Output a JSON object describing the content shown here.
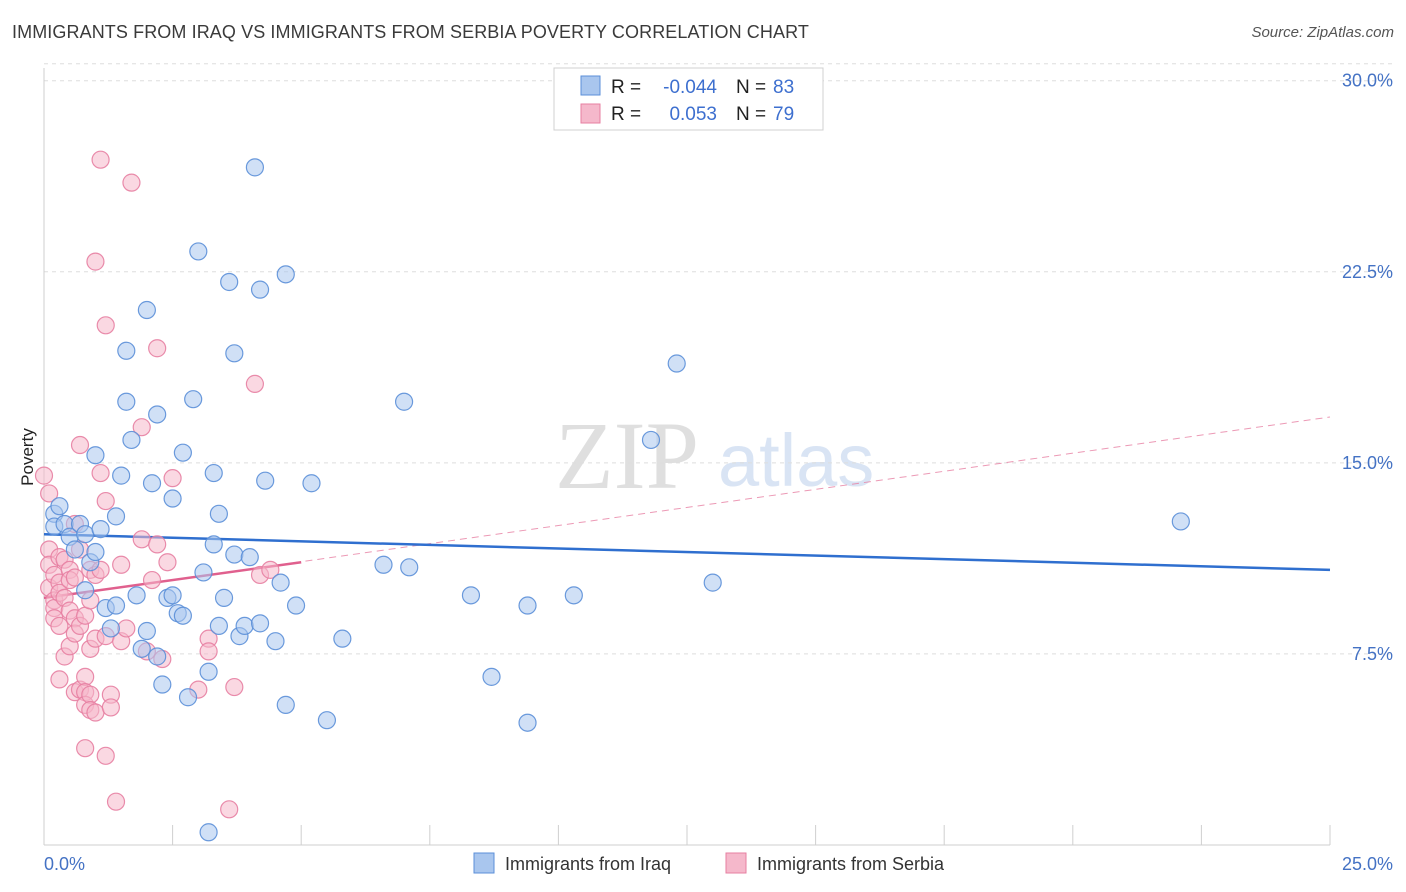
{
  "header": {
    "title": "IMMIGRANTS FROM IRAQ VS IMMIGRANTS FROM SERBIA POVERTY CORRELATION CHART",
    "source": "Source: ZipAtlas.com"
  },
  "watermark": {
    "zip": "ZIP",
    "atlas": "atlas"
  },
  "colors": {
    "iraq_fill": "#a9c6ee",
    "iraq_stroke": "#5b8fd8",
    "iraq_line": "#2f6fcf",
    "serbia_fill": "#f5b8cb",
    "serbia_stroke": "#e77fa2",
    "serbia_line": "#e0608e",
    "grid": "#dddddd",
    "axis_text": "#4472c4"
  },
  "legend": {
    "r_label": "R =",
    "n_label": "N =",
    "rows": [
      {
        "series": "iraq",
        "r": "-0.044",
        "n": "83"
      },
      {
        "series": "serbia",
        "r": "0.053",
        "n": "79"
      }
    ]
  },
  "chart_data": {
    "type": "scatter",
    "title": "IMMIGRANTS FROM IRAQ VS IMMIGRANTS FROM SERBIA POVERTY CORRELATION CHART",
    "xlabel": "",
    "ylabel": "Poverty",
    "xlim": [
      0,
      25
    ],
    "ylim": [
      0,
      30.5
    ],
    "x_tick_labels": [
      "0.0%",
      "25.0%"
    ],
    "y_ticks": [
      7.5,
      15.0,
      22.5,
      30.0
    ],
    "y_tick_labels": [
      "7.5%",
      "15.0%",
      "22.5%",
      "30.0%"
    ],
    "grid": true,
    "legend_position": "bottom",
    "series": [
      {
        "name": "Immigrants from Iraq",
        "r": -0.044,
        "n": 83,
        "trend": {
          "x": [
            0,
            25
          ],
          "y": [
            12.2,
            10.8
          ]
        },
        "points": [
          [
            0.2,
            13.0
          ],
          [
            0.2,
            12.5
          ],
          [
            0.3,
            13.3
          ],
          [
            0.4,
            12.6
          ],
          [
            0.5,
            12.1
          ],
          [
            0.6,
            11.6
          ],
          [
            0.7,
            12.6
          ],
          [
            0.8,
            12.2
          ],
          [
            0.8,
            10.0
          ],
          [
            0.9,
            11.1
          ],
          [
            1.0,
            11.5
          ],
          [
            1.0,
            15.3
          ],
          [
            1.1,
            12.4
          ],
          [
            1.2,
            9.3
          ],
          [
            1.3,
            8.5
          ],
          [
            1.4,
            9.4
          ],
          [
            1.4,
            12.9
          ],
          [
            1.5,
            14.5
          ],
          [
            1.6,
            17.4
          ],
          [
            1.6,
            19.4
          ],
          [
            1.7,
            15.9
          ],
          [
            1.8,
            9.8
          ],
          [
            1.9,
            7.7
          ],
          [
            2.0,
            8.4
          ],
          [
            2.0,
            21.0
          ],
          [
            2.1,
            14.2
          ],
          [
            2.2,
            16.9
          ],
          [
            2.2,
            7.4
          ],
          [
            2.3,
            6.3
          ],
          [
            2.4,
            9.7
          ],
          [
            2.5,
            9.8
          ],
          [
            2.5,
            13.6
          ],
          [
            2.6,
            9.1
          ],
          [
            2.7,
            9.0
          ],
          [
            2.7,
            15.4
          ],
          [
            2.8,
            5.8
          ],
          [
            2.9,
            17.5
          ],
          [
            3.0,
            23.3
          ],
          [
            3.1,
            10.7
          ],
          [
            3.2,
            6.8
          ],
          [
            3.2,
            0.5
          ],
          [
            3.3,
            11.8
          ],
          [
            3.3,
            14.6
          ],
          [
            3.4,
            8.6
          ],
          [
            3.4,
            13.0
          ],
          [
            3.5,
            9.7
          ],
          [
            3.6,
            22.1
          ],
          [
            3.7,
            19.3
          ],
          [
            3.7,
            11.4
          ],
          [
            3.8,
            8.2
          ],
          [
            3.9,
            8.6
          ],
          [
            4.0,
            11.3
          ],
          [
            4.1,
            26.6
          ],
          [
            4.2,
            21.8
          ],
          [
            4.2,
            8.7
          ],
          [
            4.3,
            14.3
          ],
          [
            4.5,
            8.0
          ],
          [
            4.6,
            10.3
          ],
          [
            4.7,
            5.5
          ],
          [
            4.7,
            22.4
          ],
          [
            4.9,
            9.4
          ],
          [
            5.2,
            14.2
          ],
          [
            5.5,
            4.9
          ],
          [
            5.8,
            8.1
          ],
          [
            6.6,
            11.0
          ],
          [
            7.0,
            17.4
          ],
          [
            7.1,
            10.9
          ],
          [
            8.3,
            9.8
          ],
          [
            8.7,
            6.6
          ],
          [
            9.4,
            4.8
          ],
          [
            9.4,
            9.4
          ],
          [
            10.3,
            9.8
          ],
          [
            11.8,
            15.9
          ],
          [
            12.3,
            18.9
          ],
          [
            13.0,
            10.3
          ],
          [
            22.1,
            12.7
          ]
        ]
      },
      {
        "name": "Immigrants from Serbia",
        "r": 0.053,
        "n": 79,
        "trend": {
          "x": [
            0,
            5.0
          ],
          "y": [
            9.7,
            11.1
          ]
        },
        "trend_extended": {
          "x": [
            0,
            25
          ],
          "y": [
            9.7,
            16.8
          ]
        },
        "points": [
          [
            0.0,
            14.5
          ],
          [
            0.1,
            13.8
          ],
          [
            0.1,
            11.6
          ],
          [
            0.1,
            11.0
          ],
          [
            0.1,
            10.1
          ],
          [
            0.2,
            10.6
          ],
          [
            0.2,
            9.6
          ],
          [
            0.2,
            9.3
          ],
          [
            0.2,
            8.9
          ],
          [
            0.3,
            11.3
          ],
          [
            0.3,
            10.3
          ],
          [
            0.3,
            9.9
          ],
          [
            0.3,
            8.6
          ],
          [
            0.3,
            6.5
          ],
          [
            0.4,
            11.2
          ],
          [
            0.4,
            9.7
          ],
          [
            0.4,
            7.4
          ],
          [
            0.5,
            10.8
          ],
          [
            0.5,
            10.4
          ],
          [
            0.5,
            9.2
          ],
          [
            0.5,
            7.8
          ],
          [
            0.6,
            12.6
          ],
          [
            0.6,
            10.5
          ],
          [
            0.6,
            8.9
          ],
          [
            0.6,
            8.3
          ],
          [
            0.6,
            6.0
          ],
          [
            0.7,
            15.7
          ],
          [
            0.7,
            11.6
          ],
          [
            0.7,
            8.6
          ],
          [
            0.7,
            6.1
          ],
          [
            0.8,
            9.0
          ],
          [
            0.8,
            6.6
          ],
          [
            0.8,
            6.0
          ],
          [
            0.8,
            5.5
          ],
          [
            0.8,
            3.8
          ],
          [
            0.9,
            10.8
          ],
          [
            0.9,
            9.6
          ],
          [
            0.9,
            7.7
          ],
          [
            0.9,
            5.9
          ],
          [
            0.9,
            5.3
          ],
          [
            1.0,
            22.9
          ],
          [
            1.0,
            10.6
          ],
          [
            1.0,
            8.1
          ],
          [
            1.0,
            5.2
          ],
          [
            1.1,
            26.9
          ],
          [
            1.1,
            14.6
          ],
          [
            1.1,
            10.8
          ],
          [
            1.2,
            20.4
          ],
          [
            1.2,
            13.5
          ],
          [
            1.2,
            8.2
          ],
          [
            1.2,
            3.5
          ],
          [
            1.3,
            5.9
          ],
          [
            1.3,
            5.4
          ],
          [
            1.4,
            1.7
          ],
          [
            1.5,
            11.0
          ],
          [
            1.5,
            8.0
          ],
          [
            1.6,
            8.5
          ],
          [
            1.7,
            26.0
          ],
          [
            1.9,
            12.0
          ],
          [
            1.9,
            16.4
          ],
          [
            2.0,
            7.6
          ],
          [
            2.1,
            10.4
          ],
          [
            2.2,
            19.5
          ],
          [
            2.2,
            11.8
          ],
          [
            2.3,
            7.3
          ],
          [
            2.4,
            11.1
          ],
          [
            2.5,
            14.4
          ],
          [
            3.0,
            6.1
          ],
          [
            3.2,
            8.1
          ],
          [
            3.2,
            7.6
          ],
          [
            3.6,
            1.4
          ],
          [
            3.7,
            6.2
          ],
          [
            4.1,
            18.1
          ],
          [
            4.2,
            10.6
          ],
          [
            4.4,
            10.8
          ]
        ]
      }
    ]
  },
  "bottom_legend": [
    {
      "series": "iraq",
      "label": "Immigrants from Iraq"
    },
    {
      "series": "serbia",
      "label": "Immigrants from Serbia"
    }
  ]
}
